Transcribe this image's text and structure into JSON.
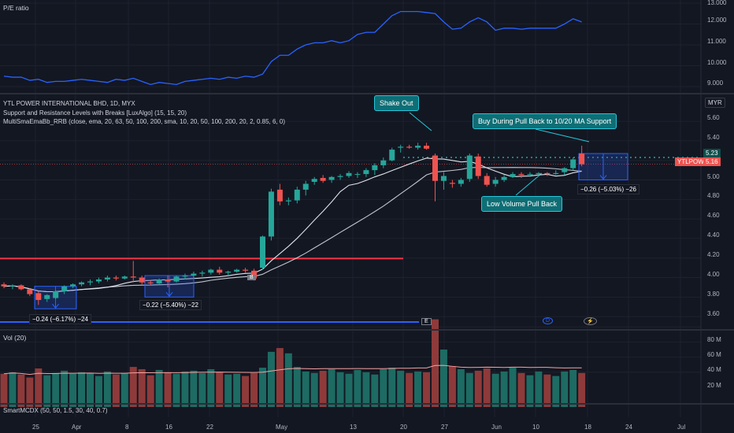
{
  "colors": {
    "up": "#26a69a",
    "down": "#ef5350",
    "pe": "#2962ff",
    "ma": "#e0e3eb",
    "bg": "#131722"
  },
  "panes": {
    "pe_title": "P/E ratio",
    "pe_ticks": [
      "13.000",
      "12.000",
      "11.000",
      "10.000",
      "9.000"
    ],
    "main_title": "YTL POWER INTERNATIONAL BHD, 1D, MYX",
    "indicator_1": "Support and Resistance Levels with Breaks [LuxAlgo] (15, 15, 20)",
    "indicator_2": "MultiSmaEmaBb_RRB (close, ema, 20, 63, 50, 100, 200, sma, 10, 20, 50, 100, 200, 20, 2, 0.85, 6, 0)",
    "price_ticks": [
      "5.60",
      "5.40",
      "5.20",
      "5.00",
      "4.80",
      "4.60",
      "4.40",
      "4.20",
      "4.00",
      "3.80",
      "3.60"
    ],
    "currency": "MYR",
    "vol_title": "Vol (20)",
    "vol_ticks": [
      "80 M",
      "60 M",
      "40 M",
      "20 M"
    ],
    "bottom_title": "SmartMCDX (50, 50, 1.5, 30, 40, 0.7)"
  },
  "price_tags": {
    "level": "5.23",
    "symbol": "YTLPOWR",
    "last": "5.16"
  },
  "annotations": {
    "shake_out": "Shake Out",
    "buy_pullback": "Buy During Pull Back to 10/20 MA Support",
    "low_volume": "Low Volume Pull Back",
    "m1": "−0.24 (−6.17%) −24",
    "m2": "−0.22 (−5.40%) −22",
    "m3": "−0.26 (−5.03%) −26",
    "b_marker": "B",
    "e_marker": "E",
    "d_marker": "D"
  },
  "x_axis": [
    "25",
    "Apr",
    "8",
    "16",
    "22",
    "May",
    "13",
    "20",
    "27",
    "Jun",
    "10",
    "18",
    "24",
    "Jul"
  ],
  "chart_data": {
    "type": "candlestick",
    "ylim": [
      3.5,
      5.72
    ],
    "candles": [
      [
        3.93,
        3.95,
        3.89,
        3.91
      ],
      [
        3.91,
        3.93,
        3.88,
        3.92
      ],
      [
        3.92,
        3.93,
        3.87,
        3.88
      ],
      [
        3.88,
        3.89,
        3.81,
        3.83
      ],
      [
        3.84,
        3.86,
        3.72,
        3.77
      ],
      [
        3.78,
        3.83,
        3.75,
        3.82
      ],
      [
        3.79,
        3.87,
        3.78,
        3.86
      ],
      [
        3.86,
        3.92,
        3.83,
        3.91
      ],
      [
        3.91,
        3.94,
        3.89,
        3.93
      ],
      [
        3.93,
        3.96,
        3.91,
        3.95
      ],
      [
        3.95,
        3.98,
        3.92,
        3.96
      ],
      [
        3.96,
        4.0,
        3.94,
        3.98
      ],
      [
        3.98,
        4.02,
        3.96,
        4.0
      ],
      [
        4.0,
        4.02,
        3.97,
        3.99
      ],
      [
        3.99,
        4.02,
        3.98,
        4.01
      ],
      [
        4.01,
        4.17,
        3.95,
        4.0
      ],
      [
        4.0,
        4.02,
        3.93,
        3.95
      ],
      [
        3.95,
        3.97,
        3.92,
        3.94
      ],
      [
        3.94,
        3.99,
        3.92,
        3.98
      ],
      [
        3.98,
        4.02,
        3.9,
        3.96
      ],
      [
        3.96,
        4.02,
        3.95,
        4.01
      ],
      [
        4.01,
        4.04,
        3.98,
        4.02
      ],
      [
        4.02,
        4.06,
        3.99,
        4.04
      ],
      [
        4.04,
        4.07,
        4.01,
        4.05
      ],
      [
        4.05,
        4.09,
        4.03,
        4.08
      ],
      [
        4.08,
        4.11,
        4.03,
        4.05
      ],
      [
        4.05,
        4.07,
        4.02,
        4.06
      ],
      [
        4.06,
        4.09,
        4.05,
        4.08
      ],
      [
        4.08,
        4.1,
        4.05,
        4.07
      ],
      [
        4.07,
        4.09,
        3.97,
        3.99
      ],
      [
        4.1,
        4.43,
        4.08,
        4.42
      ],
      [
        4.42,
        4.91,
        4.38,
        4.88
      ],
      [
        4.9,
        4.96,
        4.74,
        4.78
      ],
      [
        4.78,
        4.82,
        4.74,
        4.79
      ],
      [
        4.79,
        4.93,
        4.76,
        4.9
      ],
      [
        4.9,
        4.99,
        4.84,
        4.96
      ],
      [
        4.98,
        5.03,
        4.95,
        5.01
      ],
      [
        5.02,
        5.05,
        4.97,
        4.99
      ],
      [
        5.0,
        5.04,
        4.97,
        5.03
      ],
      [
        5.03,
        5.06,
        5.0,
        5.04
      ],
      [
        5.04,
        5.09,
        5.02,
        5.07
      ],
      [
        5.06,
        5.08,
        5.02,
        5.06
      ],
      [
        5.06,
        5.12,
        5.03,
        5.1
      ],
      [
        5.1,
        5.17,
        5.05,
        5.15
      ],
      [
        5.15,
        5.23,
        5.12,
        5.2
      ],
      [
        5.2,
        5.33,
        5.19,
        5.31
      ],
      [
        5.33,
        5.36,
        5.28,
        5.34
      ],
      [
        5.34,
        5.36,
        5.32,
        5.33
      ],
      [
        5.33,
        5.38,
        5.31,
        5.35
      ],
      [
        5.35,
        5.38,
        5.31,
        5.32
      ],
      [
        5.25,
        5.27,
        4.78,
        4.99
      ],
      [
        4.99,
        5.08,
        4.9,
        5.04
      ],
      [
        4.97,
        5.0,
        4.92,
        4.96
      ],
      [
        4.96,
        5.02,
        4.93,
        5.0
      ],
      [
        5.01,
        5.27,
        4.98,
        5.25
      ],
      [
        5.24,
        5.27,
        5.01,
        5.04
      ],
      [
        5.04,
        5.07,
        4.93,
        4.95
      ],
      [
        4.96,
        5.03,
        4.93,
        5.0
      ],
      [
        5.0,
        5.05,
        4.98,
        5.03
      ],
      [
        5.03,
        5.08,
        5.02,
        5.06
      ],
      [
        5.06,
        5.08,
        5.02,
        5.05
      ],
      [
        5.05,
        5.08,
        5.03,
        5.06
      ],
      [
        5.06,
        5.08,
        5.04,
        5.07
      ],
      [
        5.07,
        5.08,
        5.04,
        5.06
      ],
      [
        5.06,
        5.1,
        5.05,
        5.07
      ],
      [
        5.08,
        5.13,
        5.05,
        5.12
      ],
      [
        5.12,
        5.23,
        5.1,
        5.21
      ],
      [
        5.27,
        5.35,
        5.14,
        5.16
      ]
    ],
    "volume_m": [
      18,
      20,
      17,
      13,
      25,
      16,
      19,
      22,
      18,
      20,
      19,
      15,
      21,
      17,
      19,
      27,
      24,
      16,
      23,
      20,
      18,
      21,
      22,
      19,
      24,
      20,
      17,
      18,
      15,
      19,
      26,
      47,
      52,
      45,
      27,
      21,
      19,
      22,
      24,
      20,
      18,
      23,
      20,
      17,
      24,
      26,
      22,
      19,
      21,
      20,
      90,
      50,
      28,
      24,
      19,
      22,
      25,
      18,
      21,
      26,
      19,
      16,
      21,
      17,
      15,
      21,
      23,
      19
    ],
    "pe_ratio": [
      9.5,
      9.45,
      9.45,
      9.3,
      9.35,
      9.2,
      9.25,
      9.25,
      9.3,
      9.35,
      9.3,
      9.25,
      9.2,
      9.35,
      9.3,
      9.4,
      9.25,
      9.1,
      9.2,
      9.15,
      9.1,
      9.25,
      9.3,
      9.35,
      9.4,
      9.35,
      9.45,
      9.4,
      9.5,
      9.45,
      9.6,
      10.2,
      10.5,
      10.5,
      10.8,
      11.0,
      11.1,
      11.1,
      11.2,
      11.1,
      11.2,
      11.5,
      11.6,
      11.6,
      12.0,
      12.4,
      12.6,
      12.6,
      12.6,
      12.55,
      12.5,
      12.1,
      11.75,
      11.8,
      12.1,
      12.3,
      12.1,
      11.7,
      11.8,
      11.8,
      11.75,
      11.8,
      11.8,
      11.8,
      11.8,
      12.0,
      12.25,
      12.1
    ]
  }
}
